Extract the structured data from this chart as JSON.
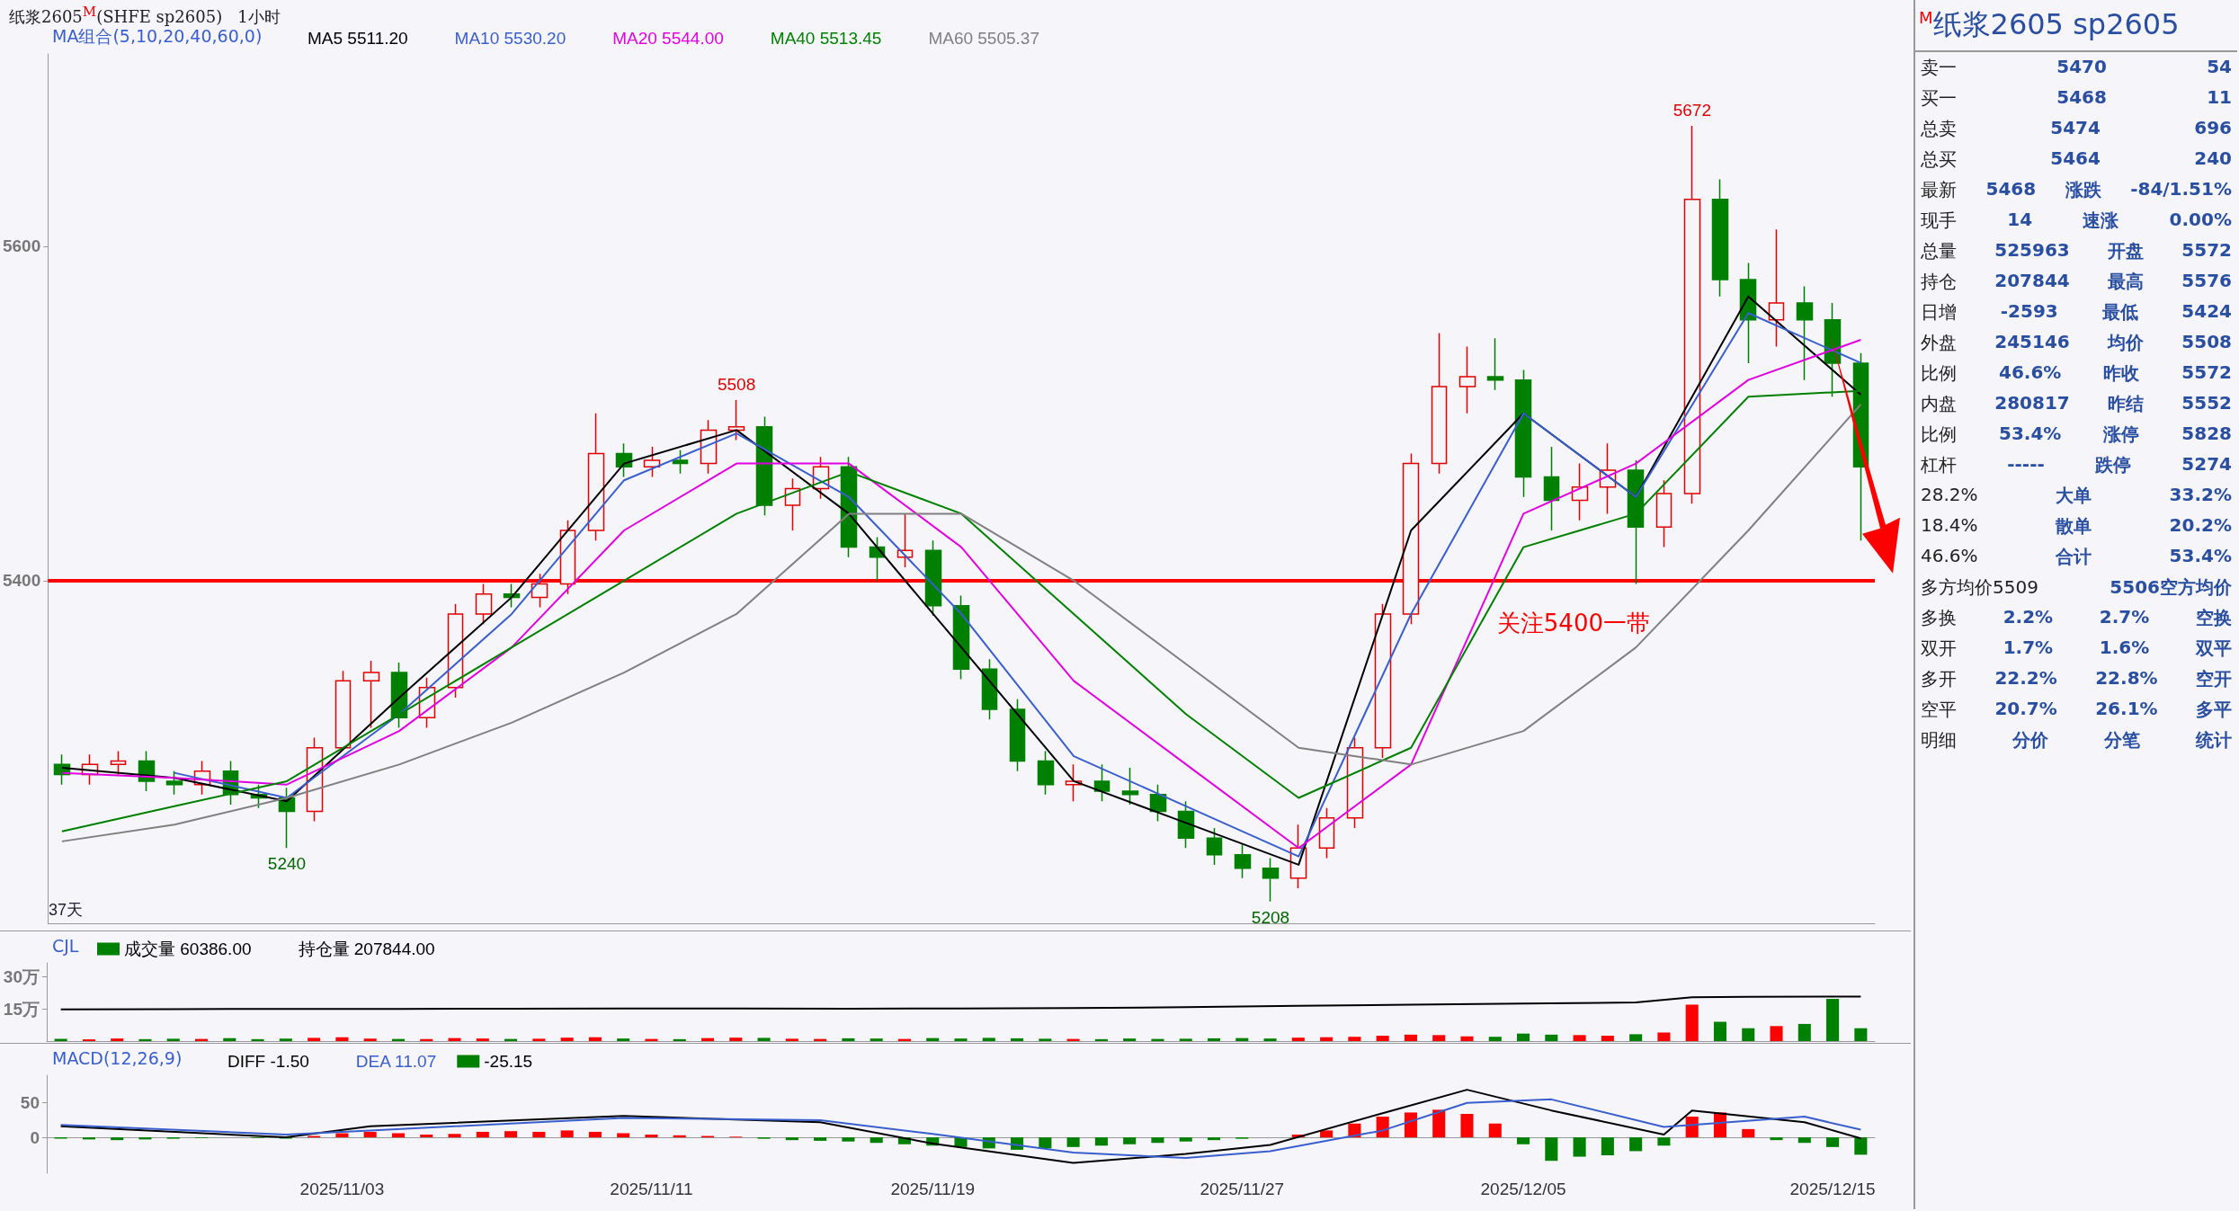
{
  "chart_data": [
    {
      "type": "candlestick",
      "title": "纸浆2605$^{M}$(SHFE sp2605)",
      "subtitle": "1小时",
      "legend_title": "MA组合(5,10,20,40,60,0)",
      "legend": "top left",
      "marker": "none",
      "tick_labels": "y",
      "grid": false,
      "categories": [
        null,
        null,
        null,
        null,
        null,
        null,
        null,
        null,
        null,
        null,
        null,
        null,
        null,
        null,
        null,
        null,
        null,
        null,
        null,
        null,
        null,
        null,
        null,
        null,
        null,
        null,
        null,
        null,
        null,
        null,
        null,
        null,
        null,
        null,
        null,
        null,
        null,
        null,
        null,
        null,
        null,
        null,
        null,
        null,
        null,
        null,
        null,
        null,
        null,
        null,
        null,
        null,
        null,
        null,
        null,
        null,
        null,
        null,
        null,
        null,
        null,
        null,
        null,
        null,
        null
      ],
      "ohlc": [
        [
          5290,
          5296,
          5278,
          5284
        ],
        [
          5284,
          5296,
          5278,
          5290
        ],
        [
          5290,
          5298,
          5284,
          5292
        ],
        [
          5292,
          5298,
          5274,
          5280
        ],
        [
          5280,
          5286,
          5272,
          5278
        ],
        [
          5278,
          5292,
          5272,
          5286
        ],
        [
          5286,
          5292,
          5266,
          5272
        ],
        [
          5272,
          5278,
          5264,
          5270
        ],
        [
          5270,
          5276,
          5240,
          5262
        ],
        [
          5262,
          5306,
          5256,
          5300
        ],
        [
          5300,
          5346,
          5300,
          5340
        ],
        [
          5340,
          5352,
          5312,
          5345
        ],
        [
          5345,
          5351,
          5312,
          5318
        ],
        [
          5318,
          5342,
          5312,
          5336
        ],
        [
          5336,
          5386,
          5330,
          5380
        ],
        [
          5380,
          5398,
          5374,
          5392
        ],
        [
          5392,
          5398,
          5384,
          5390
        ],
        [
          5390,
          5404,
          5384,
          5398
        ],
        [
          5398,
          5436,
          5392,
          5430
        ],
        [
          5430,
          5500,
          5424,
          5476
        ],
        [
          5476,
          5482,
          5462,
          5468
        ],
        [
          5468,
          5480,
          5462,
          5472
        ],
        [
          5472,
          5478,
          5464,
          5470
        ],
        [
          5470,
          5496,
          5464,
          5490
        ],
        [
          5490,
          5508,
          5484,
          5492
        ],
        [
          5492,
          5498,
          5439,
          5445
        ],
        [
          5445,
          5461,
          5430,
          5455
        ],
        [
          5455,
          5474,
          5449,
          5468
        ],
        [
          5468,
          5474,
          5414,
          5420
        ],
        [
          5420,
          5426,
          5400,
          5414
        ],
        [
          5414,
          5440,
          5408,
          5418
        ],
        [
          5418,
          5424,
          5379,
          5385
        ],
        [
          5385,
          5391,
          5341,
          5347
        ],
        [
          5347,
          5353,
          5317,
          5323
        ],
        [
          5323,
          5329,
          5286,
          5292
        ],
        [
          5292,
          5298,
          5272,
          5278
        ],
        [
          5278,
          5290,
          5268,
          5280
        ],
        [
          5280,
          5290,
          5268,
          5274
        ],
        [
          5274,
          5288,
          5266,
          5272
        ],
        [
          5272,
          5278,
          5256,
          5262
        ],
        [
          5262,
          5268,
          5240,
          5246
        ],
        [
          5246,
          5252,
          5230,
          5236
        ],
        [
          5236,
          5242,
          5222,
          5228
        ],
        [
          5228,
          5234,
          5208,
          5222
        ],
        [
          5222,
          5254,
          5216,
          5240
        ],
        [
          5240,
          5264,
          5234,
          5258
        ],
        [
          5258,
          5306,
          5252,
          5300
        ],
        [
          5300,
          5386,
          5294,
          5380
        ],
        [
          5380,
          5476,
          5374,
          5470
        ],
        [
          5470,
          5548,
          5464,
          5516
        ],
        [
          5516,
          5540,
          5500,
          5522
        ],
        [
          5522,
          5545,
          5514,
          5520
        ],
        [
          5520,
          5526,
          5450,
          5462
        ],
        [
          5462,
          5480,
          5430,
          5448
        ],
        [
          5448,
          5470,
          5436,
          5456
        ],
        [
          5456,
          5482,
          5440,
          5466
        ],
        [
          5466,
          5472,
          5398,
          5432
        ],
        [
          5432,
          5460,
          5420,
          5452
        ],
        [
          5452,
          5672,
          5446,
          5628
        ],
        [
          5628,
          5640,
          5570,
          5580
        ],
        [
          5580,
          5590,
          5530,
          5556
        ],
        [
          5556,
          5610,
          5540,
          5566
        ],
        [
          5566,
          5576,
          5520,
          5556
        ],
        [
          5556,
          5566,
          5510,
          5530
        ],
        [
          5530,
          5536,
          5424,
          5468
        ]
      ],
      "series": [
        {
          "name": "MA5 5511.20",
          "type": "line",
          "color": "#000000",
          "values": [
            5288,
            null,
            null,
            null,
            5282,
            null,
            null,
            null,
            5268,
            null,
            null,
            null,
            5330,
            null,
            null,
            null,
            5390,
            null,
            null,
            null,
            5470,
            null,
            null,
            null,
            5490,
            null,
            null,
            null,
            5440,
            null,
            null,
            null,
            5360,
            null,
            null,
            null,
            5280,
            null,
            null,
            null,
            5255,
            null,
            null,
            null,
            5230,
            null,
            null,
            null,
            5430,
            null,
            null,
            null,
            5500,
            null,
            null,
            null,
            5450,
            null,
            null,
            null,
            5570,
            null,
            null,
            null,
            5511.2
          ]
        },
        {
          "name": "MA10 5530.20",
          "type": "line",
          "color": "#3a5fcd",
          "values": [
            null,
            null,
            null,
            null,
            5285,
            null,
            null,
            null,
            5270,
            null,
            null,
            null,
            5320,
            null,
            null,
            null,
            5380,
            null,
            null,
            null,
            5460,
            null,
            null,
            null,
            5488,
            null,
            null,
            null,
            5450,
            null,
            null,
            null,
            5380,
            null,
            null,
            null,
            5295,
            null,
            null,
            null,
            5265,
            null,
            null,
            null,
            5235,
            null,
            null,
            null,
            5380,
            null,
            null,
            null,
            5500,
            null,
            null,
            null,
            5450,
            null,
            null,
            null,
            5560,
            null,
            null,
            null,
            5530.2
          ]
        },
        {
          "name": "MA20 5544.00",
          "type": "line",
          "color": "#e000e0",
          "values": [
            5285,
            null,
            null,
            null,
            5282,
            null,
            null,
            null,
            5278,
            null,
            null,
            null,
            5310,
            null,
            null,
            null,
            5360,
            null,
            null,
            null,
            5430,
            null,
            null,
            null,
            5470,
            null,
            null,
            null,
            5470,
            null,
            null,
            null,
            5420,
            null,
            null,
            null,
            5340,
            null,
            null,
            null,
            5290,
            null,
            null,
            null,
            5240,
            null,
            null,
            null,
            5290,
            null,
            null,
            null,
            5440,
            null,
            null,
            null,
            5470,
            null,
            null,
            null,
            5520,
            null,
            null,
            null,
            5544
          ]
        },
        {
          "name": "MA40 5513.45",
          "type": "line",
          "color": "#008000",
          "values": [
            5250,
            null,
            null,
            null,
            5265,
            null,
            null,
            null,
            5280,
            null,
            null,
            null,
            5320,
            null,
            null,
            null,
            5360,
            null,
            null,
            null,
            5400,
            null,
            null,
            null,
            5440,
            null,
            null,
            null,
            5465,
            null,
            null,
            null,
            5440,
            null,
            null,
            null,
            5380,
            null,
            null,
            null,
            5320,
            null,
            null,
            null,
            5270,
            null,
            null,
            null,
            5300,
            null,
            null,
            null,
            5420,
            null,
            null,
            null,
            5440,
            null,
            null,
            null,
            5510,
            null,
            null,
            null,
            5513.45
          ]
        },
        {
          "name": "MA60 5505.37",
          "type": "line",
          "color": "#808080",
          "values": [
            5244,
            null,
            null,
            null,
            5254,
            null,
            null,
            null,
            5270,
            null,
            null,
            null,
            5290,
            null,
            null,
            null,
            5315,
            null,
            null,
            null,
            5345,
            null,
            null,
            null,
            5380,
            null,
            null,
            null,
            5440,
            null,
            null,
            null,
            5440,
            null,
            null,
            null,
            5400,
            null,
            null,
            null,
            5350,
            null,
            null,
            null,
            5300,
            null,
            null,
            null,
            5290,
            null,
            null,
            null,
            5310,
            null,
            null,
            null,
            5360,
            null,
            null,
            null,
            5430,
            null,
            null,
            null,
            5505.37
          ]
        }
      ],
      "ylim": [
        5195,
        5715
      ],
      "yticks": [
        5400,
        5600
      ],
      "ref_lines": [
        {
          "axis": "y",
          "value": 5400,
          "label": "关注5400一带",
          "color": "#ff0000"
        }
      ],
      "annotations": [
        {
          "text": "5672",
          "y": 5672
        },
        {
          "text": "5508",
          "y": 5508
        },
        {
          "text": "5240",
          "y": 5240
        },
        {
          "text": "5208",
          "y": 5208
        },
        "37天"
      ]
    },
    {
      "type": "bar",
      "legend_title": "CJL",
      "legend": "top left",
      "marker": "none",
      "tick_labels": "y",
      "grid": false,
      "categories": [
        null,
        null,
        null,
        null,
        null,
        null,
        null,
        null,
        null,
        null,
        null,
        null,
        null,
        null,
        null,
        null,
        null,
        null,
        null,
        null,
        null,
        null,
        null,
        null,
        null,
        null,
        null,
        null,
        null,
        null,
        null,
        null,
        null,
        null,
        null,
        null,
        null,
        null,
        null,
        null,
        null,
        null,
        null,
        null,
        null,
        null,
        null,
        null,
        null,
        null,
        null,
        null,
        null,
        null,
        null,
        null,
        null,
        null,
        null,
        null,
        null,
        null,
        null,
        null,
        null
      ],
      "series": [
        {
          "name": "成交量 60386.00",
          "type": "bar",
          "values": [
            1.0,
            0.8,
            1.2,
            0.9,
            1.1,
            1.0,
            1.4,
            0.9,
            1.2,
            1.5,
            1.8,
            1.2,
            1.0,
            0.9,
            1.4,
            1.2,
            1.0,
            1.1,
            1.6,
            1.8,
            1.2,
            1.0,
            0.9,
            1.4,
            1.6,
            1.5,
            1.1,
            1.0,
            1.3,
            1.2,
            1.0,
            1.4,
            1.2,
            1.5,
            1.3,
            1.1,
            1.0,
            0.9,
            1.2,
            1.0,
            1.1,
            1.3,
            1.4,
            1.2,
            1.6,
            1.8,
            2.0,
            2.5,
            3.0,
            2.8,
            2.2,
            2.0,
            3.5,
            3.0,
            2.8,
            2.5,
            3.2,
            4.0,
            17.0,
            9.0,
            6.0,
            7.0,
            8.0,
            19.7,
            6.0
          ],
          "colors": [
            "#008000",
            "#ff0000",
            "#ff0000",
            "#008000",
            "#008000",
            "#ff0000",
            "#008000",
            "#008000",
            "#008000",
            "#ff0000",
            "#ff0000",
            "#ff0000",
            "#008000",
            "#ff0000",
            "#ff0000",
            "#ff0000",
            "#008000",
            "#ff0000",
            "#ff0000",
            "#ff0000",
            "#008000",
            "#ff0000",
            "#008000",
            "#ff0000",
            "#ff0000",
            "#008000",
            "#ff0000",
            "#ff0000",
            "#008000",
            "#008000",
            "#ff0000",
            "#008000",
            "#008000",
            "#008000",
            "#008000",
            "#008000",
            "#ff0000",
            "#008000",
            "#008000",
            "#008000",
            "#008000",
            "#008000",
            "#008000",
            "#008000",
            "#ff0000",
            "#ff0000",
            "#ff0000",
            "#ff0000",
            "#ff0000",
            "#ff0000",
            "#ff0000",
            "#008000",
            "#008000",
            "#008000",
            "#ff0000",
            "#ff0000",
            "#008000",
            "#ff0000",
            "#ff0000",
            "#008000",
            "#008000",
            "#ff0000",
            "#008000",
            "#008000",
            "#008000"
          ]
        },
        {
          "name": "持仓量 207844.00",
          "type": "line",
          "color": "#000000",
          "values": [
            14.8,
            null,
            null,
            null,
            14.9,
            null,
            null,
            null,
            15.0,
            null,
            null,
            null,
            15.0,
            null,
            null,
            null,
            15.1,
            null,
            null,
            null,
            15.2,
            null,
            null,
            null,
            15.2,
            null,
            null,
            null,
            15.1,
            null,
            null,
            null,
            15.2,
            null,
            null,
            null,
            15.4,
            null,
            null,
            null,
            15.8,
            null,
            null,
            null,
            16.5,
            null,
            null,
            null,
            17.0,
            null,
            null,
            null,
            17.5,
            null,
            null,
            null,
            18.0,
            null,
            20.5,
            null,
            20.7,
            null,
            null,
            null,
            20.8
          ]
        }
      ],
      "ylim": [
        0,
        36.5
      ],
      "yticks": [
        {
          "value": 15,
          "label": "15万"
        },
        {
          "value": 30,
          "label": "30万"
        }
      ]
    },
    {
      "type": "bar",
      "legend_title": "MACD(12,26,9)",
      "legend": "top left",
      "marker": "none",
      "grid": false,
      "categories": [
        null,
        null,
        null,
        null,
        null,
        null,
        null,
        null,
        null,
        null,
        "2025/11/03",
        null,
        null,
        null,
        null,
        null,
        null,
        null,
        null,
        null,
        null,
        "2025/11/11",
        null,
        null,
        null,
        null,
        null,
        null,
        null,
        null,
        null,
        "2025/11/19",
        null,
        null,
        null,
        null,
        null,
        null,
        null,
        null,
        null,
        null,
        "2025/11/27",
        null,
        null,
        null,
        null,
        null,
        null,
        null,
        null,
        null,
        "2025/12/05",
        null,
        null,
        null,
        null,
        null,
        null,
        null,
        null,
        null,
        null,
        "2025/12/15",
        null
      ],
      "series": [
        {
          "name": "DIFF -1.50",
          "type": "line",
          "color": "#000000",
          "values": [
            16,
            null,
            null,
            null,
            null,
            null,
            null,
            null,
            0,
            null,
            null,
            16,
            null,
            null,
            null,
            null,
            null,
            null,
            null,
            null,
            31,
            null,
            null,
            null,
            null,
            null,
            null,
            22,
            null,
            null,
            null,
            -9,
            null,
            null,
            null,
            null,
            -37,
            null,
            null,
            null,
            -24,
            null,
            null,
            -11,
            null,
            null,
            null,
            35,
            null,
            null,
            69,
            null,
            null,
            39,
            null,
            null,
            null,
            4,
            39,
            null,
            null,
            null,
            22,
            null,
            -1.5
          ]
        },
        {
          "name": "DEA 11.07",
          "type": "line",
          "color": "#3a5fcd",
          "values": [
            18,
            null,
            null,
            null,
            null,
            null,
            null,
            null,
            4,
            null,
            null,
            10,
            null,
            null,
            null,
            null,
            null,
            null,
            null,
            null,
            28,
            null,
            null,
            null,
            null,
            null,
            null,
            25,
            null,
            null,
            null,
            5,
            null,
            null,
            null,
            null,
            -22,
            null,
            null,
            null,
            -30,
            null,
            null,
            -20,
            null,
            null,
            null,
            10,
            null,
            null,
            50,
            null,
            null,
            55,
            null,
            null,
            null,
            15,
            18,
            null,
            null,
            null,
            30,
            null,
            11.07
          ]
        },
        {
          "name": "-25.15",
          "type": "bar",
          "values": [
            -2,
            -3,
            -4,
            -3,
            -2,
            -1,
            0,
            -1,
            -2,
            2,
            6,
            8,
            6,
            4,
            5,
            8,
            9,
            8,
            10,
            8,
            6,
            4,
            3,
            2,
            1,
            -2,
            -4,
            -5,
            -6,
            -8,
            -10,
            -12,
            -14,
            -16,
            -18,
            -16,
            -14,
            -12,
            -10,
            -8,
            -6,
            -4,
            -2,
            0,
            4,
            10,
            20,
            30,
            36,
            40,
            34,
            20,
            -10,
            -34,
            -28,
            -26,
            -20,
            -12,
            30,
            36,
            12,
            -4,
            -8,
            -14,
            -25.15
          ],
          "colors": [
            "#008000",
            "#008000",
            "#008000",
            "#008000",
            "#008000",
            "#008000",
            "#ff0000",
            "#008000",
            "#008000",
            "#ff0000",
            "#ff0000",
            "#ff0000",
            "#ff0000",
            "#ff0000",
            "#ff0000",
            "#ff0000",
            "#ff0000",
            "#ff0000",
            "#ff0000",
            "#ff0000",
            "#ff0000",
            "#ff0000",
            "#ff0000",
            "#ff0000",
            "#ff0000",
            "#008000",
            "#008000",
            "#008000",
            "#008000",
            "#008000",
            "#008000",
            "#008000",
            "#008000",
            "#008000",
            "#008000",
            "#008000",
            "#008000",
            "#008000",
            "#008000",
            "#008000",
            "#008000",
            "#008000",
            "#008000",
            "#ff0000",
            "#ff0000",
            "#ff0000",
            "#ff0000",
            "#ff0000",
            "#ff0000",
            "#ff0000",
            "#ff0000",
            "#ff0000",
            "#008000",
            "#008000",
            "#008000",
            "#008000",
            "#008000",
            "#008000",
            "#ff0000",
            "#ff0000",
            "#ff0000",
            "#008000",
            "#008000",
            "#008000",
            "#008000"
          ]
        }
      ],
      "ylim": [
        -52,
        90
      ],
      "yticks": [
        0,
        50
      ]
    },
    {
      "type": "other",
      "title": "$^{M}$纸浆2605  sp2605",
      "annotations": [
        "卖一 5470 54",
        "买一 5468 11",
        "总卖 5474 696",
        "总买 5464 240",
        "最新 5468 涨跌 -84/1.51%",
        "现手 14 速涨 0.00%",
        "总量 525963 开盘 5572",
        "持仓 207844 最高 5576",
        "日增 -2593 最低 5424",
        "外盘 245146 均价 5508",
        "比例 46.6% 昨收 5572",
        "内盘 280817 昨结 5552",
        "比例 53.4% 涨停 5828",
        "杠杆 ----- 跌停 5274",
        "28.2% 大单 33.2%",
        "18.4% 散单 20.2%",
        "46.6% 合计 53.4%",
        "多方均价5509 5506空方均价",
        "多换 2.2% 2.7% 空换",
        "双开 1.7% 1.6% 双平",
        "多开 22.2% 22.8% 空开",
        "空平 20.7% 26.1% 多平",
        "明细 分价 分笔 统计"
      ]
    }
  ]
}
